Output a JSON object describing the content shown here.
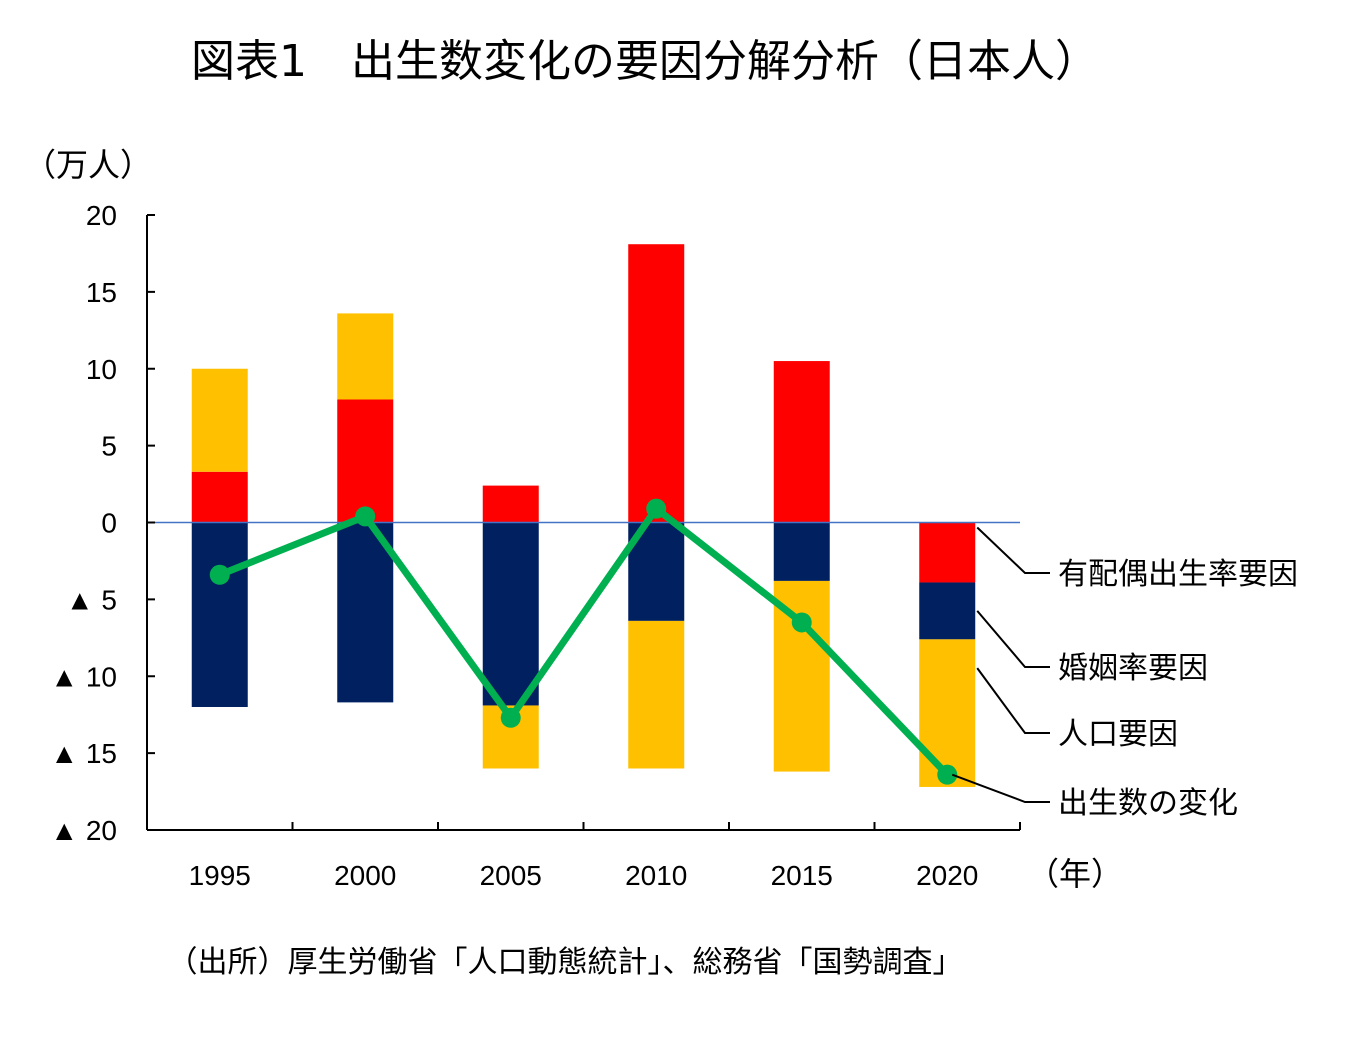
{
  "chart_data": {
    "type": "bar",
    "title": "図表1　出生数変化の要因分解分析（日本人）",
    "ylabel": "（万人）",
    "xlabel": "（年）",
    "source": "（出所）厚生労働省「人口動態統計」、総務省「国勢調査」",
    "categories": [
      "1995",
      "2000",
      "2005",
      "2010",
      "2015",
      "2020"
    ],
    "ylim": [
      -20,
      20
    ],
    "y_ticks": [
      20,
      15,
      10,
      5,
      0,
      -5,
      -10,
      -15,
      -20
    ],
    "y_tick_labels": [
      "20",
      "15",
      "10",
      "5",
      "0",
      "▲ 5",
      "▲ 10",
      "▲ 15",
      "▲ 20"
    ],
    "stacked": true,
    "series": [
      {
        "name": "有配偶出生率要因",
        "type": "bar",
        "color": "#ff0000",
        "values": [
          3.3,
          8.0,
          2.4,
          18.1,
          10.5,
          -3.9
        ]
      },
      {
        "name": "婚姻率要因",
        "type": "bar",
        "color": "#002060",
        "values": [
          -12.0,
          -11.7,
          -11.9,
          -6.4,
          -3.8,
          -3.7
        ]
      },
      {
        "name": "人口要因",
        "type": "bar",
        "color": "#ffc000",
        "values": [
          6.7,
          5.6,
          -4.1,
          -9.6,
          -12.4,
          -9.6
        ]
      },
      {
        "name": "出生数の変化",
        "type": "line",
        "color": "#00b050",
        "values": [
          -3.4,
          0.4,
          -12.7,
          0.9,
          -6.5,
          -16.4
        ]
      }
    ],
    "grid": false,
    "zero_line_color": "#4472c4",
    "legend_placement": "right, labels with leader lines"
  }
}
